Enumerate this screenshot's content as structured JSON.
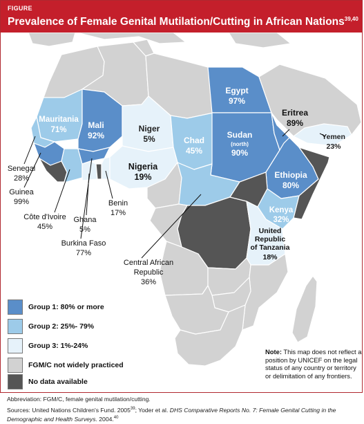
{
  "figure": {
    "label": "FIGURE",
    "title": "Prevalence of Female Genital Mutilation/Cutting in African Nations",
    "title_sup": "39,40"
  },
  "colors": {
    "group1": "#5a8ec9",
    "group2": "#9dcbe9",
    "group3": "#e6f2fa",
    "not_practiced": "#d2d2d2",
    "no_data": "#555555",
    "header": "#c41f2b"
  },
  "countries": {
    "egypt": {
      "name": "Egypt",
      "value": "97%"
    },
    "mauritania": {
      "name": "Mauritania",
      "value": "71%"
    },
    "mali": {
      "name": "Mali",
      "value": "92%"
    },
    "niger": {
      "name": "Niger",
      "value": "5%"
    },
    "chad": {
      "name": "Chad",
      "value": "45%"
    },
    "sudan": {
      "name": "Sudan",
      "sub": "(north)",
      "value": "90%"
    },
    "eritrea": {
      "name": "Eritrea",
      "value": "89%"
    },
    "yemen": {
      "name": "Yemen",
      "value": "23%"
    },
    "nigeria": {
      "name": "Nigeria",
      "value": "19%"
    },
    "ethiopia": {
      "name": "Ethiopia",
      "value": "80%"
    },
    "kenya": {
      "name": "Kenya",
      "value": "32%"
    },
    "tanzania": {
      "line1": "United",
      "line2": "Republic",
      "line3": "of Tanzania",
      "value": "18%"
    },
    "senegal": {
      "name": "Senegal",
      "value": "28%"
    },
    "guinea": {
      "name": "Guinea",
      "value": "99%"
    },
    "cote_divoire": {
      "name": "Côte d'Ivoire",
      "value": "45%"
    },
    "ghana": {
      "name": "Ghana",
      "value": "5%"
    },
    "benin": {
      "name": "Benin",
      "value": "17%"
    },
    "burkina_faso": {
      "name": "Burkina Faso",
      "value": "77%"
    },
    "car": {
      "line1": "Central African",
      "line2": "Republic",
      "value": "36%"
    }
  },
  "legend": [
    {
      "label": "Group 1: 80% or more",
      "color": "#5a8ec9"
    },
    {
      "label": "Group 2: 25%- 79%",
      "color": "#9dcbe9"
    },
    {
      "label": "Group 3: 1%-24%",
      "color": "#e6f2fa"
    },
    {
      "label": "FGM/C not widely practiced",
      "color": "#d2d2d2"
    },
    {
      "label": "No data available",
      "color": "#555555"
    }
  ],
  "note": {
    "lead": "Note:",
    "text": "This map does not reflect a position by UNICEF on the legal status of any country or territory or delimitation of any frontiers."
  },
  "footer": {
    "abbreviation": "Abbreviation: FGM/C, female genital mutilation/cutting.",
    "sources_a": "Sources: United Nations Children's Fund. 2005",
    "sources_a_sup": "39",
    "sources_b": "; Yoder et al. ",
    "sources_italic": "DHS Comparative Reports No. 7: Female Genital Cutting in the Demographic and Health Surveys",
    "sources_c": ". 2004.",
    "sources_c_sup": "40"
  }
}
